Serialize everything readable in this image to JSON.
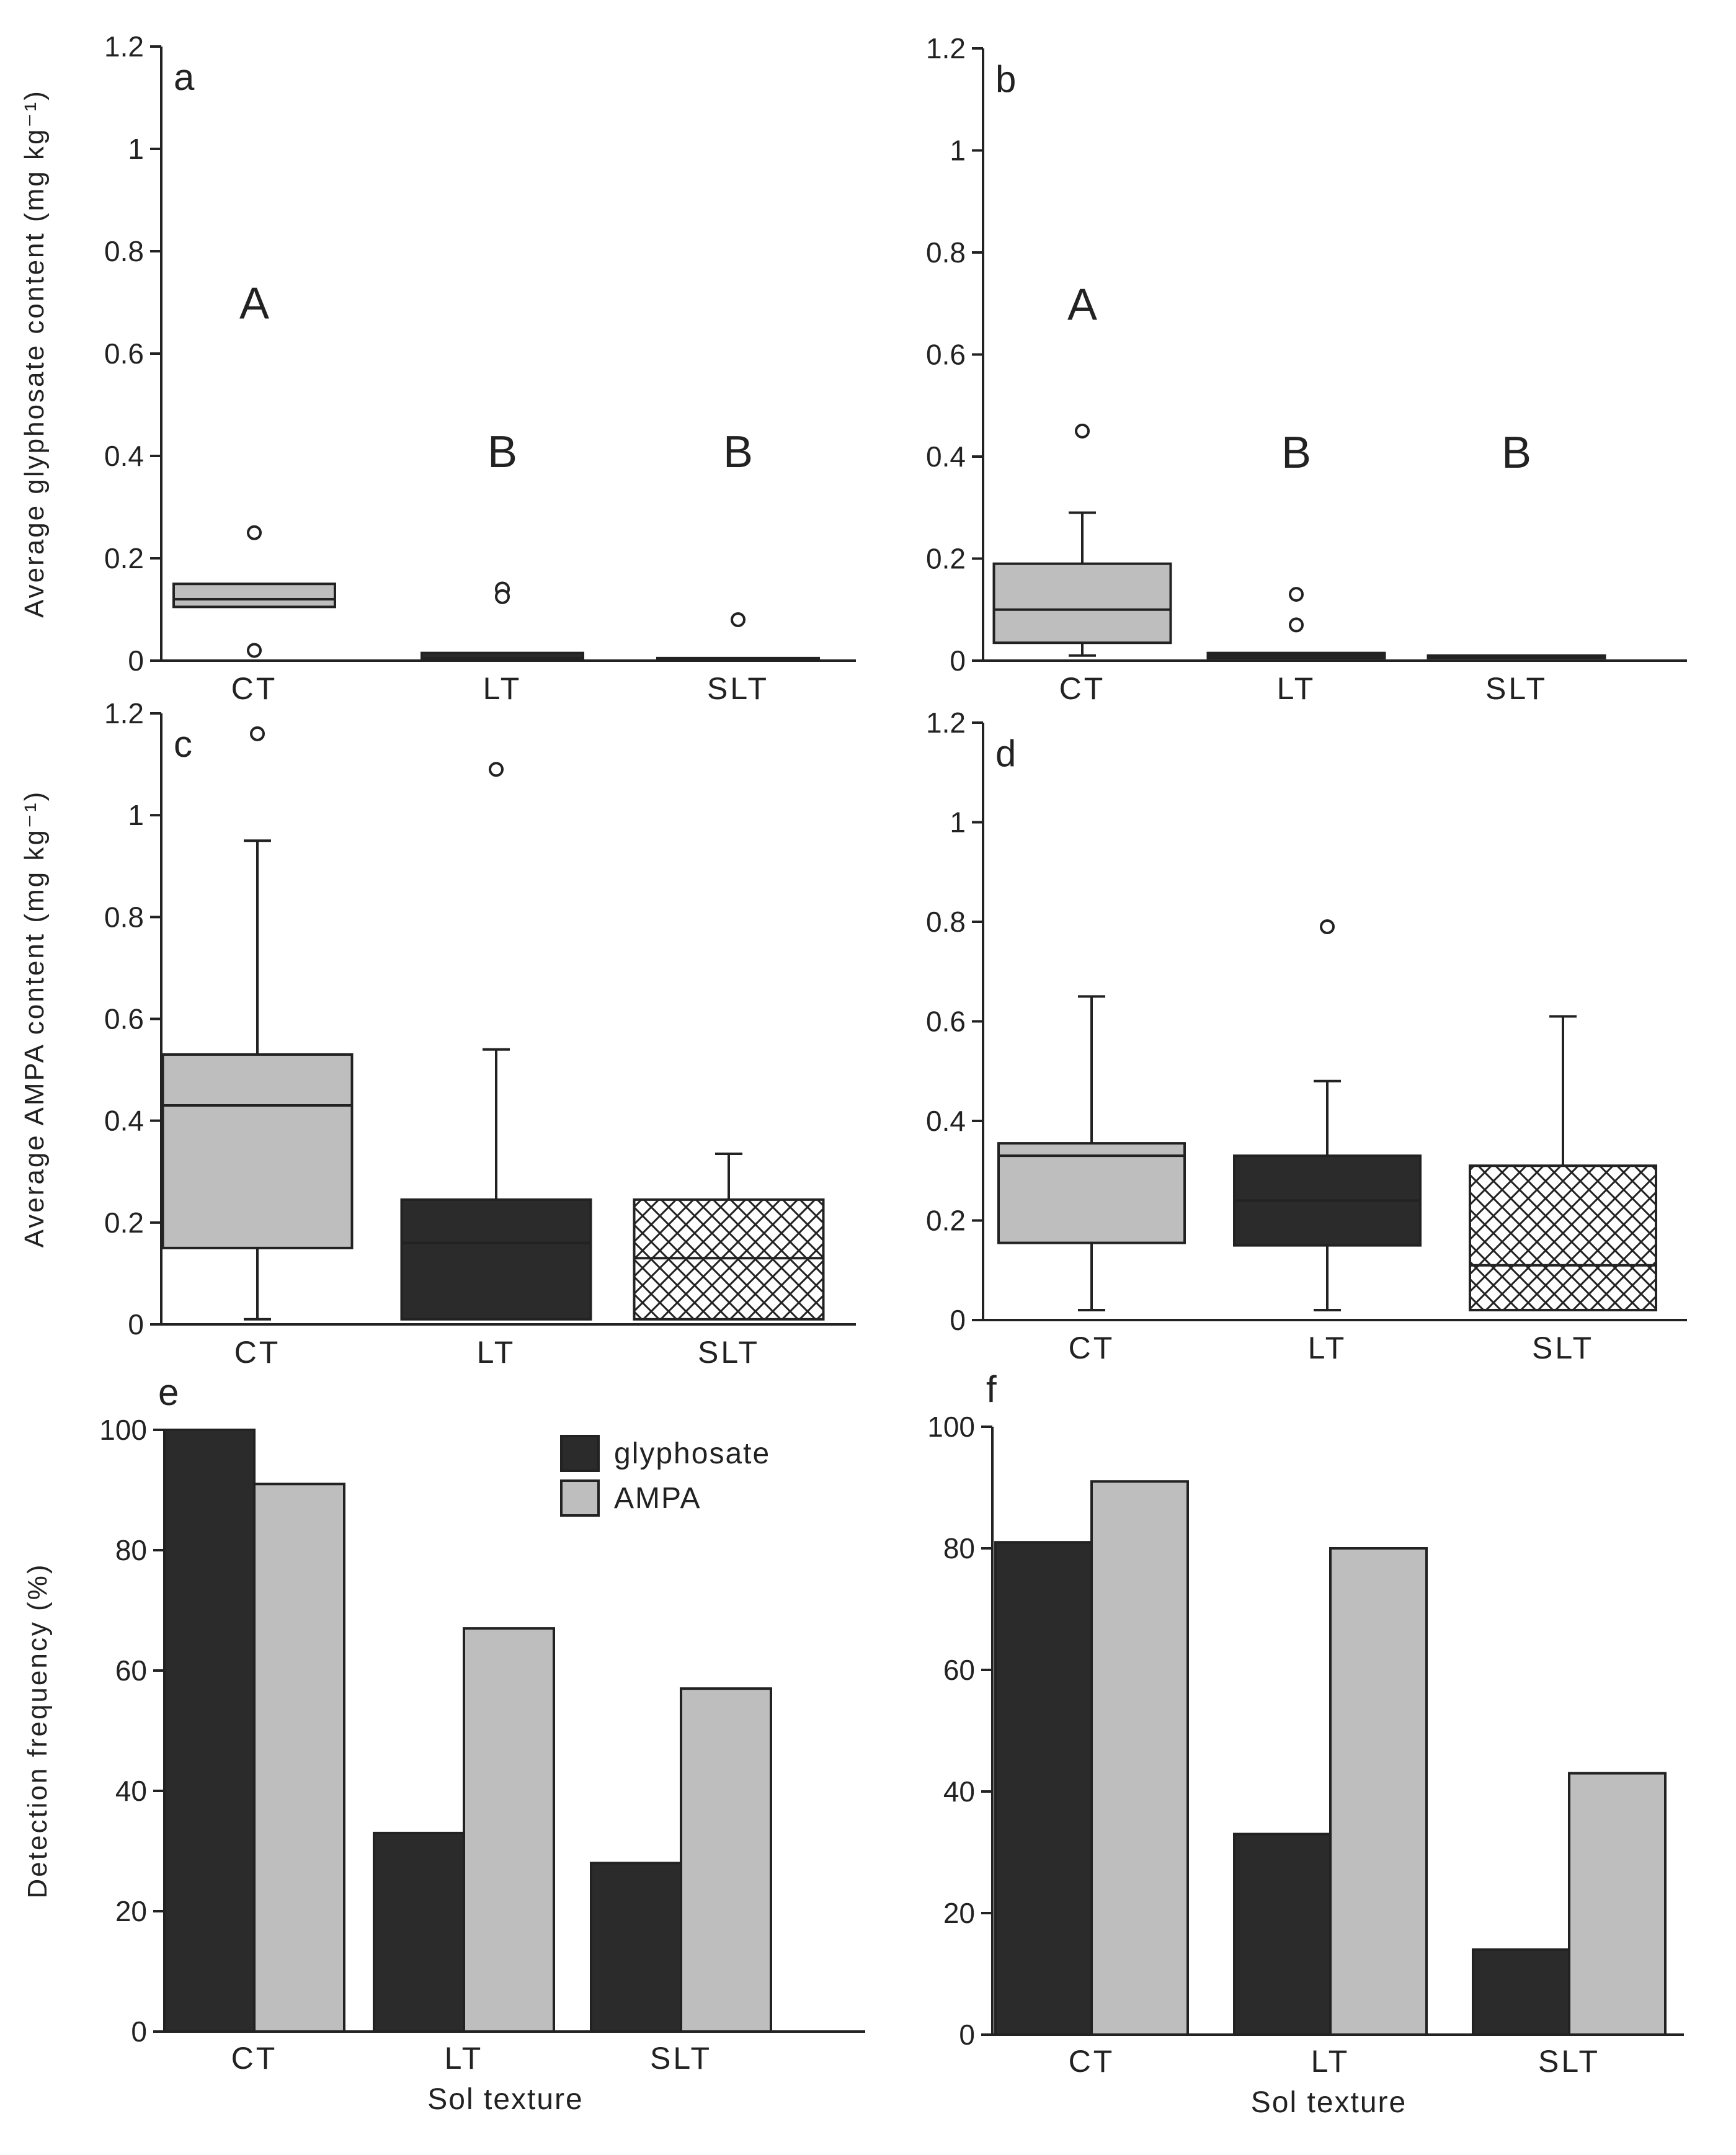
{
  "colors": {
    "gray": "#bebebe",
    "dark": "#2b2b2b",
    "white": "#ffffff",
    "axis": "#222222"
  },
  "chart_data": [
    {
      "panel": "a",
      "type": "box",
      "ylabel": "Average glyphosate content (mg kg⁻¹)",
      "ylim": [
        0,
        1.2
      ],
      "yticks": [
        "0",
        "0.2",
        "0.4",
        "0.6",
        "0.8",
        "1",
        "1.2"
      ],
      "categories": [
        "CT",
        "LT",
        "SLT"
      ],
      "boxes": [
        {
          "fill": "gray",
          "q1": 0.105,
          "median": 0.12,
          "q3": 0.15,
          "whisker_low": null,
          "whisker_high": null,
          "outliers": [
            0.25,
            0.02
          ],
          "letter": "A",
          "letter_y": 0.7
        },
        {
          "fill": "dark",
          "q1": 0.0,
          "median": 0.005,
          "q3": 0.015,
          "whisker_low": null,
          "whisker_high": null,
          "outliers": [
            0.14,
            0.125
          ],
          "letter": "B",
          "letter_y": 0.41
        },
        {
          "fill": "dark",
          "q1": 0.0,
          "median": 0.002,
          "q3": 0.005,
          "whisker_low": null,
          "whisker_high": null,
          "outliers": [
            0.08
          ],
          "letter": "B",
          "letter_y": 0.41
        }
      ]
    },
    {
      "panel": "b",
      "type": "box",
      "ylabel": "",
      "ylim": [
        0,
        1.2
      ],
      "yticks": [
        "0",
        "0.2",
        "0.4",
        "0.6",
        "0.8",
        "1",
        "1.2"
      ],
      "categories": [
        "CT",
        "LT",
        "SLT"
      ],
      "boxes": [
        {
          "fill": "gray",
          "q1": 0.035,
          "median": 0.1,
          "q3": 0.19,
          "whisker_low": 0.01,
          "whisker_high": 0.29,
          "outliers": [
            0.45
          ],
          "letter": "A",
          "letter_y": 0.7
        },
        {
          "fill": "dark",
          "q1": 0.005,
          "median": 0.01,
          "q3": 0.015,
          "whisker_low": null,
          "whisker_high": null,
          "outliers": [
            0.13,
            0.07
          ],
          "letter": "B",
          "letter_y": 0.41
        },
        {
          "fill": "dark",
          "q1": 0.008,
          "median": 0.009,
          "q3": 0.01,
          "whisker_low": null,
          "whisker_high": null,
          "outliers": [],
          "letter": "B",
          "letter_y": 0.41
        }
      ]
    },
    {
      "panel": "c",
      "type": "box",
      "ylabel": "Average AMPA content (mg kg⁻¹)",
      "ylim": [
        0,
        1.2
      ],
      "yticks": [
        "0",
        "0.2",
        "0.4",
        "0.6",
        "0.8",
        "1",
        "1.2"
      ],
      "categories": [
        "CT",
        "LT",
        "SLT"
      ],
      "boxes": [
        {
          "fill": "gray",
          "q1": 0.15,
          "median": 0.43,
          "q3": 0.53,
          "whisker_low": 0.01,
          "whisker_high": 0.95,
          "outliers": [
            1.16
          ]
        },
        {
          "fill": "dark",
          "q1": 0.01,
          "median": 0.16,
          "q3": 0.245,
          "whisker_low": null,
          "whisker_high": 0.54,
          "outliers": [
            1.09
          ]
        },
        {
          "fill": "hatch",
          "q1": 0.01,
          "median": 0.13,
          "q3": 0.245,
          "whisker_low": null,
          "whisker_high": 0.335,
          "outliers": []
        }
      ]
    },
    {
      "panel": "d",
      "type": "box",
      "ylabel": "",
      "ylim": [
        0,
        1.2
      ],
      "yticks": [
        "0",
        "0.2",
        "0.4",
        "0.6",
        "0.8",
        "1",
        "1.2"
      ],
      "categories": [
        "CT",
        "LT",
        "SLT"
      ],
      "boxes": [
        {
          "fill": "gray",
          "q1": 0.155,
          "median": 0.33,
          "q3": 0.355,
          "whisker_low": 0.02,
          "whisker_high": 0.65,
          "outliers": []
        },
        {
          "fill": "dark",
          "q1": 0.15,
          "median": 0.24,
          "q3": 0.33,
          "whisker_low": 0.02,
          "whisker_high": 0.48,
          "outliers": [
            0.79
          ]
        },
        {
          "fill": "hatch",
          "q1": 0.02,
          "median": 0.11,
          "q3": 0.31,
          "whisker_low": null,
          "whisker_high": 0.61,
          "outliers": []
        }
      ]
    },
    {
      "panel": "e",
      "type": "bar",
      "ylabel": "Detection frequency (%)",
      "xlabel": "Sol texture",
      "ylim": [
        0,
        100
      ],
      "yticks": [
        "0",
        "20",
        "40",
        "60",
        "80",
        "100"
      ],
      "categories": [
        "CT",
        "LT",
        "SLT"
      ],
      "series": [
        {
          "name": "glyphosate",
          "color": "dark",
          "values": [
            100,
            33,
            28
          ]
        },
        {
          "name": "AMPA",
          "color": "gray",
          "values": [
            91,
            67,
            57
          ]
        }
      ],
      "legend": [
        "glyphosate",
        "AMPA"
      ]
    },
    {
      "panel": "f",
      "type": "bar",
      "ylabel": "",
      "xlabel": "Sol texture",
      "ylim": [
        0,
        100
      ],
      "yticks": [
        "0",
        "20",
        "40",
        "60",
        "80",
        "100"
      ],
      "categories": [
        "CT",
        "LT",
        "SLT"
      ],
      "series": [
        {
          "name": "glyphosate",
          "color": "dark",
          "values": [
            81,
            33,
            14
          ]
        },
        {
          "name": "AMPA",
          "color": "gray",
          "values": [
            91,
            80,
            43
          ]
        }
      ]
    }
  ]
}
